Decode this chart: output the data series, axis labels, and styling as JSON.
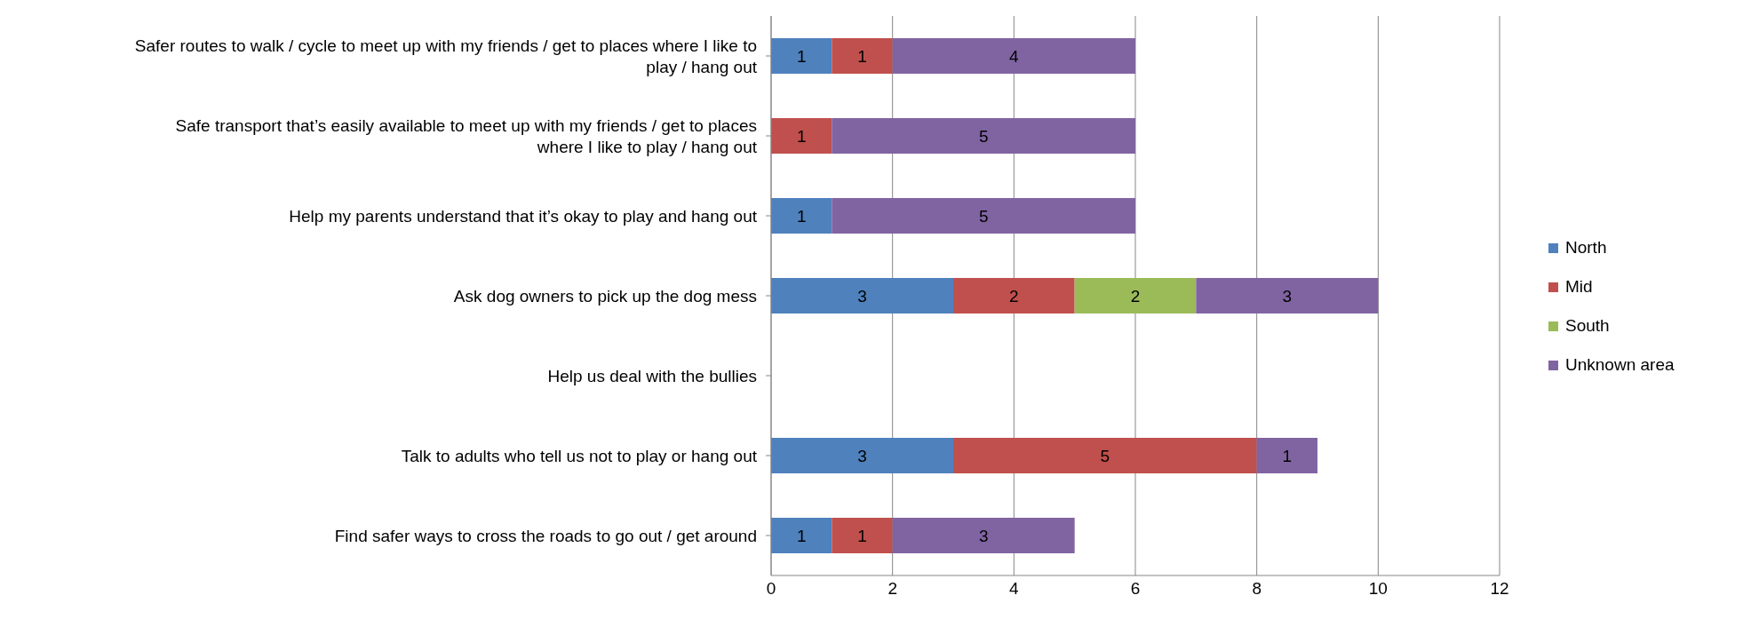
{
  "chart_data": {
    "type": "bar",
    "orientation": "horizontal",
    "stacked": true,
    "categories": [
      "Safer routes to walk / cycle to meet up with my friends / get to places where I like to play / hang out",
      "Safe transport that’s easily available to meet up with my friends / get to places where I like to play / hang out",
      "Help my parents understand that it’s okay to play and hang out",
      "Ask dog owners to pick up the dog mess",
      "Help us deal with the bullies",
      "Talk to adults who tell us not to play or hang out",
      "Find safer ways to cross the roads to go out / get around"
    ],
    "series": [
      {
        "name": "North",
        "color": "#4f81bd",
        "values": [
          1,
          null,
          1,
          3,
          null,
          3,
          1
        ]
      },
      {
        "name": "Mid",
        "color": "#c0504d",
        "values": [
          1,
          1,
          null,
          2,
          null,
          5,
          1
        ]
      },
      {
        "name": "South",
        "color": "#9bbb59",
        "values": [
          null,
          null,
          null,
          2,
          null,
          null,
          null
        ]
      },
      {
        "name": "Unknown area",
        "color": "#8064a2",
        "values": [
          4,
          5,
          5,
          3,
          null,
          1,
          3
        ]
      }
    ],
    "xlim": [
      0,
      12
    ],
    "xticks": [
      0,
      2,
      4,
      6,
      8,
      10,
      12
    ],
    "grid": "x",
    "legend": "right",
    "data_labels": true
  }
}
